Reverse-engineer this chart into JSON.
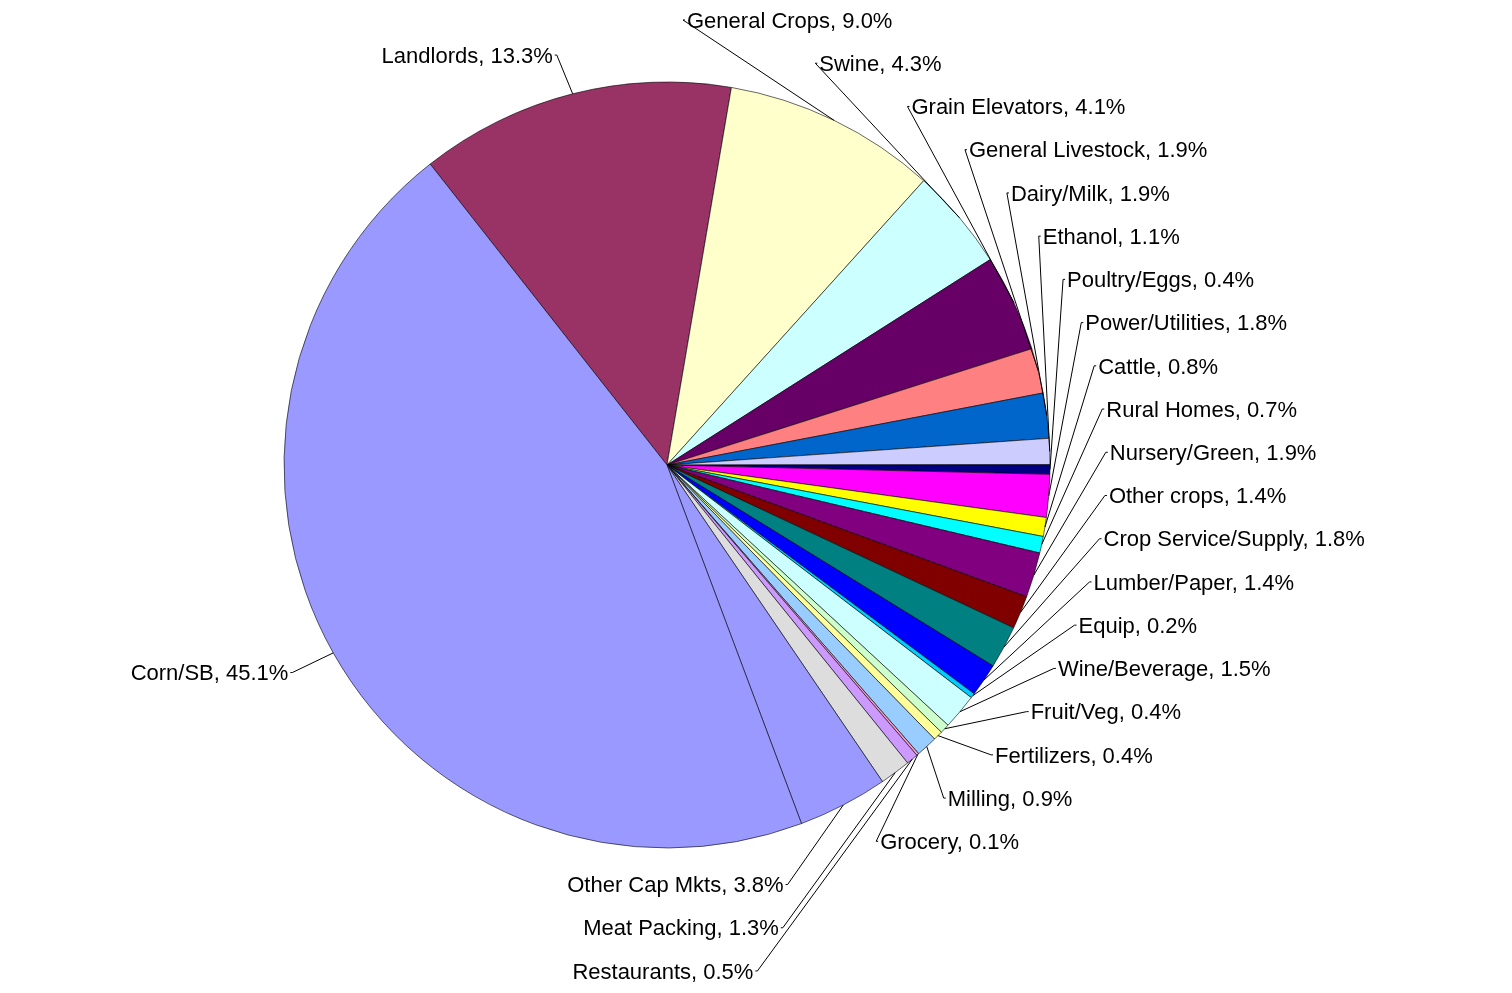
{
  "chart_data": {
    "type": "pie",
    "categories": [
      "Landlords",
      "General Crops",
      "Swine",
      "Grain Elevators",
      "General Livestock",
      "Dairy/Milk",
      "Ethanol",
      "Poultry/Eggs",
      "Power/Utilities",
      "Cattle",
      "Rural Homes",
      "Nursery/Green",
      "Other crops",
      "Crop Service/Supply",
      "Lumber/Paper",
      "Equip",
      "Wine/Beverage",
      "Fruit/Veg",
      "Fertilizers",
      "Milling",
      "Grocery",
      "Restaurants",
      "Meat Packing",
      "Other Cap Mkts",
      "Corn/SB"
    ],
    "values": [
      13.3,
      9.0,
      4.3,
      4.1,
      1.9,
      1.9,
      1.1,
      0.4,
      1.8,
      0.8,
      0.7,
      1.9,
      1.4,
      1.8,
      1.4,
      0.2,
      1.5,
      0.4,
      0.4,
      0.9,
      0.1,
      0.5,
      1.3,
      3.8,
      45.1
    ],
    "value_labels": [
      "13.3%",
      "9.0%",
      "4.3%",
      "4.1%",
      "1.9%",
      "1.9%",
      "1.1%",
      "0.4%",
      "1.8%",
      "0.8%",
      "0.7%",
      "1.9%",
      "1.4%",
      "1.8%",
      "1.4%",
      "0.2%",
      "1.5%",
      "0.4%",
      "0.4%",
      "0.9%",
      "0.1%",
      "0.5%",
      "1.3%",
      "3.8%",
      "45.1%"
    ],
    "colors": [
      "#993366",
      "#ffffcc",
      "#ccffff",
      "#660066",
      "#ff8080",
      "#0066cc",
      "#ccccff",
      "#000080",
      "#ff00ff",
      "#ffff00",
      "#00ffff",
      "#800080",
      "#800000",
      "#008080",
      "#0000ff",
      "#00ccff",
      "#ccffff",
      "#ccffcc",
      "#ffff99",
      "#99ccff",
      "#ff99cc",
      "#cc99ff",
      "#dddddd",
      "#9999ff",
      "#9999ff"
    ]
  }
}
